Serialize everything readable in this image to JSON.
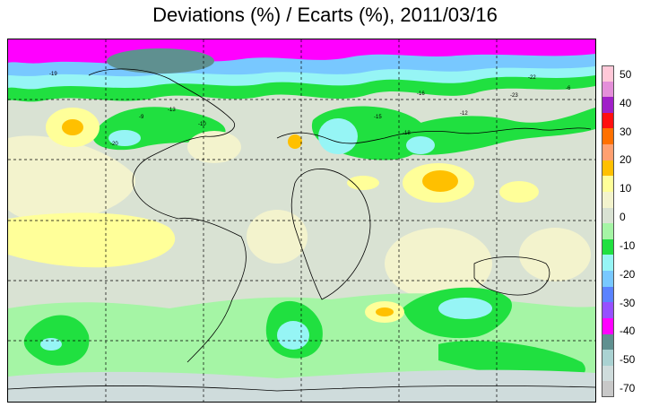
{
  "title": "Deviations (%) / Ecarts (%), 2011/03/16",
  "legend": {
    "labels": [
      "50",
      "40",
      "30",
      "20",
      "10",
      "0",
      "-10",
      "-20",
      "-30",
      "-40",
      "-50",
      "-70"
    ],
    "colors": [
      "#ffc8d8",
      "#e48fd9",
      "#a020c8",
      "#ff1010",
      "#ff7000",
      "#ffa070",
      "#ffc000",
      "#ffff99",
      "#f3f3cd",
      "#d9e2d3",
      "#a5f5a5",
      "#20e040",
      "#96f5f5",
      "#78c8ff",
      "#5a82ff",
      "#9650ff",
      "#ff00ff",
      "#5f9090",
      "#aad2d2",
      "#cfdcdc",
      "#c8c8c8"
    ]
  },
  "contour_labels": [
    "-19",
    "-20",
    "-16",
    "-13",
    "-23",
    "-18",
    "-15",
    "-10",
    "-9",
    "-12",
    "-6",
    "-22"
  ]
}
